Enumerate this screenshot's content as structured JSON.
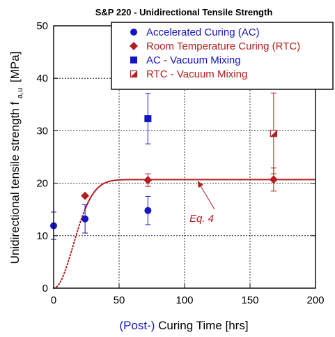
{
  "chart_data": {
    "type": "scatter",
    "title": "S&P 220 - Unidirectional Tensile Strength",
    "ylabel": "Unidirectional tensile strength",
    "ylabel_symbol": "f",
    "ylabel_subscript": "a,u",
    "ylabel_unit": "[MPa]",
    "xlabel_prefix": "(Post-)",
    "xlabel_main": "Curing Time [hrs]",
    "xlim": [
      0,
      200
    ],
    "ylim": [
      0,
      50
    ],
    "xticks": [
      0,
      50,
      100,
      150,
      200
    ],
    "yticks": [
      0,
      10,
      20,
      30,
      40,
      50
    ],
    "grid": true,
    "legend_position": "top-right",
    "colors": {
      "blue": "#1414c8",
      "red": "#b41e1e",
      "grid": "#000000",
      "axis": "#000000"
    },
    "series": [
      {
        "name": "Accelerated Curing (AC)",
        "marker": "circle",
        "color": "blue",
        "points": [
          {
            "x": 0,
            "y": 11.9,
            "err": 2.6
          },
          {
            "x": 24,
            "y": 13.2,
            "err": 2.7
          },
          {
            "x": 72,
            "y": 14.8,
            "err": 2.7
          }
        ]
      },
      {
        "name": "Room Temperature Curing (RTC)",
        "marker": "diamond",
        "color": "red",
        "points": [
          {
            "x": 24,
            "y": 17.6,
            "err": 0
          },
          {
            "x": 72,
            "y": 20.6,
            "err": 1.2
          },
          {
            "x": 168,
            "y": 20.7,
            "err": 2.2
          }
        ]
      },
      {
        "name": "AC - Vacuum Mixing",
        "marker": "square",
        "color": "blue",
        "points": [
          {
            "x": 72,
            "y": 32.3,
            "err": 4.8
          }
        ]
      },
      {
        "name": "RTC - Vacuum Mixing",
        "marker": "half-square",
        "color": "red",
        "points": [
          {
            "x": 168,
            "y": 29.5,
            "err": 7.7
          }
        ]
      }
    ],
    "fit_curve": {
      "color": "red",
      "asymptote": 20.7,
      "rate": 0.00225,
      "exponent": 2,
      "dotted_until_x": 24
    },
    "annotation": {
      "text": "Eq. 4",
      "arrow_target": {
        "x": 110,
        "y": 20.7
      }
    }
  }
}
